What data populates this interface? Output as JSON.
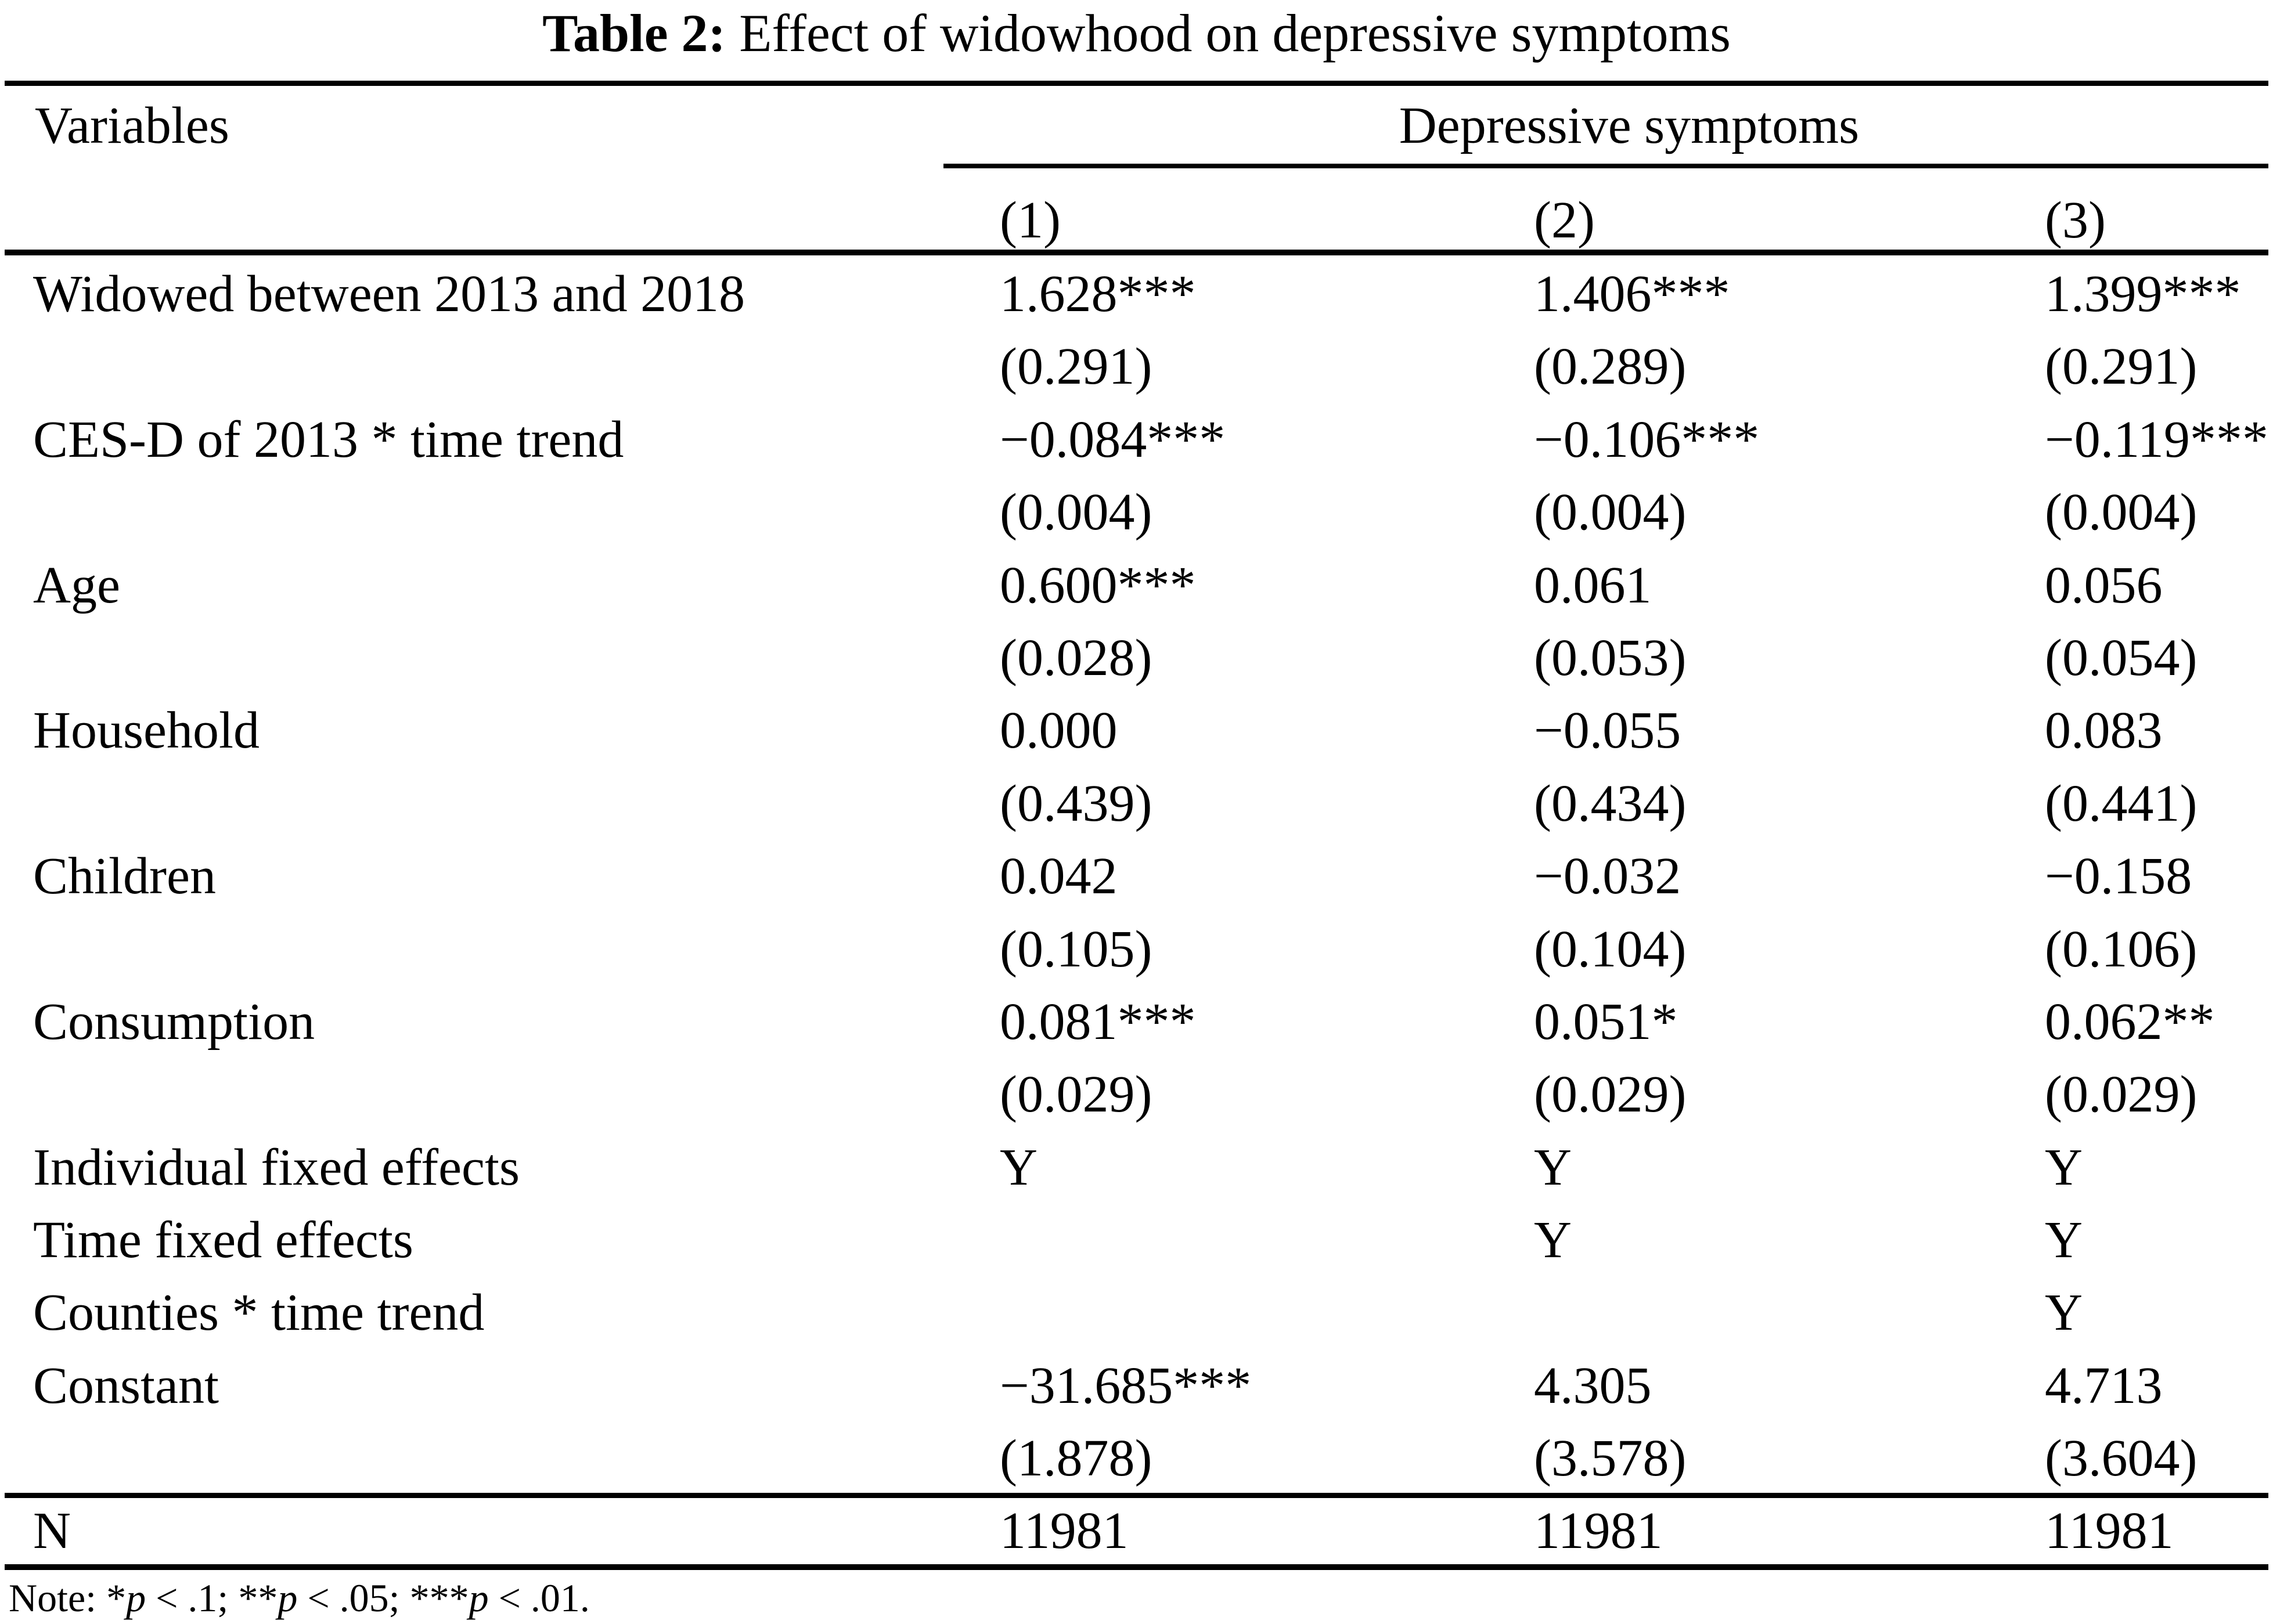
{
  "style": {
    "ink": "#000000",
    "paper": "#ffffff"
  },
  "title": {
    "bold": "Table 2:",
    "rest": " Effect of widowhood on depressive symptoms"
  },
  "header": {
    "variables_label": "Variables",
    "group_label": "Depressive symptoms",
    "col_labels": [
      "(1)",
      "(2)",
      "(3)"
    ]
  },
  "body_rows": [
    {
      "label": "Widowed between 2013 and 2018",
      "c1": "1.628***",
      "c2": "1.406***",
      "c3": "1.399***"
    },
    {
      "label": "",
      "c1": "(0.291)",
      "c2": "(0.289)",
      "c3": "(0.291)"
    },
    {
      "label": "CES-D of 2013 * time trend",
      "c1": "−0.084***",
      "c2": "−0.106***",
      "c3": "−0.119***"
    },
    {
      "label": "",
      "c1": "(0.004)",
      "c2": "(0.004)",
      "c3": "(0.004)"
    },
    {
      "label": "Age",
      "c1": "0.600***",
      "c2": "0.061",
      "c3": "0.056"
    },
    {
      "label": "",
      "c1": "(0.028)",
      "c2": "(0.053)",
      "c3": "(0.054)"
    },
    {
      "label": "Household",
      "c1": "0.000",
      "c2": "−0.055",
      "c3": "0.083"
    },
    {
      "label": "",
      "c1": "(0.439)",
      "c2": "(0.434)",
      "c3": "(0.441)"
    },
    {
      "label": "Children",
      "c1": "0.042",
      "c2": "−0.032",
      "c3": "−0.158"
    },
    {
      "label": "",
      "c1": "(0.105)",
      "c2": "(0.104)",
      "c3": "(0.106)"
    },
    {
      "label": "Consumption",
      "c1": "0.081***",
      "c2": "0.051*",
      "c3": "0.062**"
    },
    {
      "label": "",
      "c1": "(0.029)",
      "c2": "(0.029)",
      "c3": "(0.029)"
    },
    {
      "label": "Individual fixed effects",
      "c1": "Y",
      "c2": "Y",
      "c3": "Y"
    },
    {
      "label": "Time fixed effects",
      "c1": "",
      "c2": "Y",
      "c3": "Y"
    },
    {
      "label": "Counties * time trend",
      "c1": "",
      "c2": "",
      "c3": "Y"
    },
    {
      "label": "Constant",
      "c1": "−31.685***",
      "c2": "4.305",
      "c3": "4.713"
    },
    {
      "label": "",
      "c1": "(1.878)",
      "c2": "(3.578)",
      "c3": "(3.604)"
    }
  ],
  "n_row": {
    "label": "N",
    "c1": "11981",
    "c2": "11981",
    "c3": "11981"
  },
  "note": {
    "prefix": "Note: *",
    "p1": "p",
    "seg1": " < .1; **",
    "p2": "p",
    "seg2": " < .05; ***",
    "p3": "p",
    "seg3": " < .01."
  }
}
